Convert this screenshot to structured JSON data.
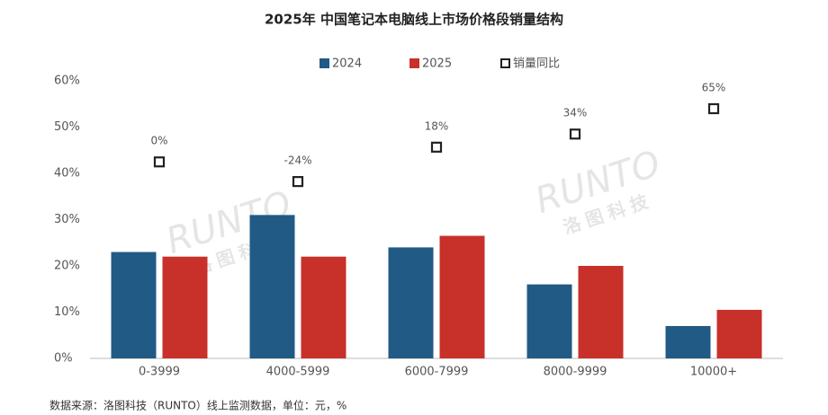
{
  "chart_data": {
    "type": "bar",
    "title": "2025年 中国笔记本电脑线上市场价格段销量结构",
    "categories": [
      "0-3999",
      "4000-5999",
      "6000-7999",
      "8000-9999",
      "10000+"
    ],
    "series": [
      {
        "name": "2024",
        "color": "#215a85",
        "values": [
          23,
          31,
          24,
          16,
          7
        ]
      },
      {
        "name": "2025",
        "color": "#c8302a",
        "values": [
          22,
          22,
          26.5,
          20,
          10.5
        ]
      },
      {
        "name": "销量同比",
        "color": "#222222",
        "axis": "y2",
        "marker": "square",
        "values": [
          0,
          -24,
          18,
          34,
          65
        ],
        "value_labels": [
          "0%",
          "-24%",
          "18%",
          "34%",
          "65%"
        ]
      }
    ],
    "ylim": [
      0,
      60
    ],
    "yticks": [
      {
        "value": 0,
        "label": "0%"
      },
      {
        "value": 10,
        "label": "10%"
      },
      {
        "value": 20,
        "label": "20%"
      },
      {
        "value": 30,
        "label": "30%"
      },
      {
        "value": 40,
        "label": "40%"
      },
      {
        "value": 50,
        "label": "50%"
      },
      {
        "value": 60,
        "label": "60%"
      }
    ],
    "y2lim": [
      -240,
      99
    ],
    "grid": false,
    "legend": "top",
    "watermark": "RUNTO",
    "watermark_sub": "洛图科技",
    "source": "数据来源：洛图科技（RUNTO）线上监测数据，单位：元，%"
  }
}
